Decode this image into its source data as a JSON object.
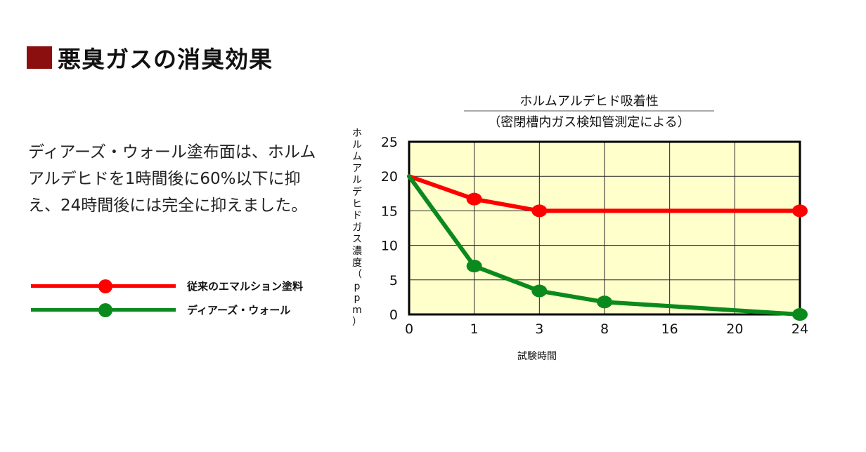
{
  "heading": {
    "title": "悪臭ガスの消臭効果"
  },
  "description": "ディアーズ・ウォール塗布面は、ホルムアルデヒドを1時間後に60%以下に抑え、24時間後には完全に抑えました。",
  "legend": [
    {
      "label": "従来のエマルション塗料",
      "color": "#ff0000"
    },
    {
      "label": "ディアーズ・ウォール",
      "color": "#0a8a1c"
    }
  ],
  "chart_data": {
    "type": "line",
    "title": "ホルムアルデヒド吸着性",
    "subtitle": "（密閉槽内ガス検知管測定による）",
    "xlabel": "試験時間",
    "ylabel": "ホルムアルデヒドガス濃度（ppm）",
    "categories": [
      "0",
      "1",
      "3",
      "8",
      "16",
      "20",
      "24"
    ],
    "ylim": [
      0,
      25
    ],
    "yticks": [
      0,
      5,
      10,
      15,
      20,
      25
    ],
    "grid": true,
    "plot_background": "#ffffcc",
    "series": [
      {
        "name": "従来のエマルション塗料",
        "color": "#ff0000",
        "points": [
          {
            "x": "0",
            "y": 20
          },
          {
            "x": "1",
            "y": 16.7
          },
          {
            "x": "3",
            "y": 15
          },
          {
            "x": "24",
            "y": 15
          }
        ],
        "markers": [
          "1",
          "3",
          "24"
        ]
      },
      {
        "name": "ディアーズ・ウォール",
        "color": "#0a8a1c",
        "points": [
          {
            "x": "0",
            "y": 20
          },
          {
            "x": "1",
            "y": 7
          },
          {
            "x": "3",
            "y": 3.4
          },
          {
            "x": "8",
            "y": 1.8
          },
          {
            "x": "24",
            "y": 0
          }
        ],
        "markers": [
          "1",
          "3",
          "8",
          "24"
        ]
      }
    ]
  }
}
